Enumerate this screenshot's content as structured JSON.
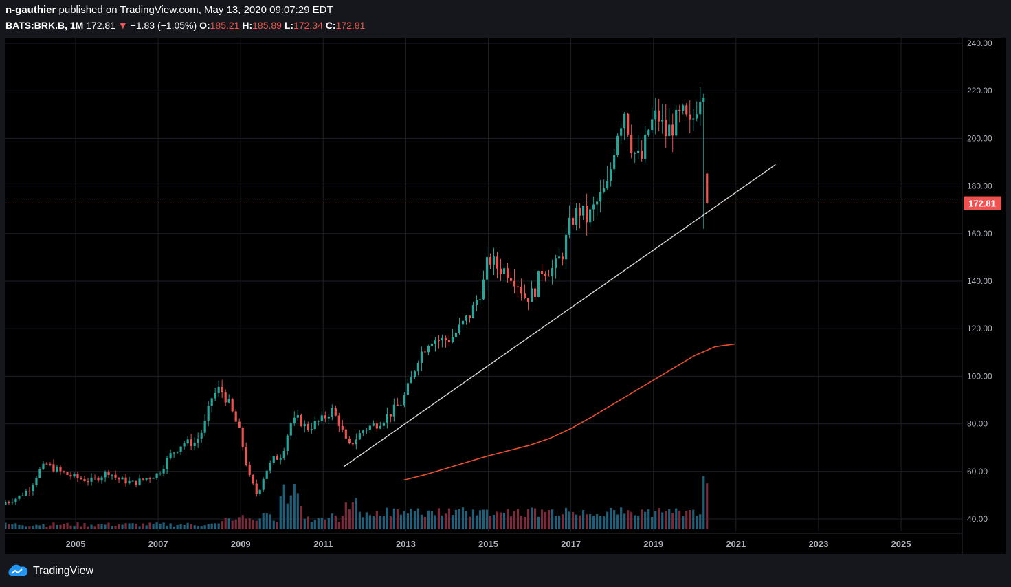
{
  "header": {
    "author": "n-gauthier",
    "published_text": "published on TradingView.com, May 13, 2020 09:07:29 EDT",
    "symbol": "BATS:BRK.B, 1M",
    "last": "172.81",
    "arrow": "▼",
    "change": "−1.83 (−1.05%)",
    "o_label": "O:",
    "o_value": "185.21",
    "h_label": "H:",
    "h_value": "185.89",
    "l_label": "L:",
    "l_value": "172.34",
    "c_label": "C:",
    "c_value": "172.81"
  },
  "footer": {
    "brand": "TradingView"
  },
  "colors": {
    "up": "#26a69a",
    "down": "#ef5350",
    "ma": "#e8502f",
    "trendline": "#d8d8d8",
    "price_line": "#ef5350",
    "volume_up": "#1f5f7a",
    "volume_down": "#7a2a3a"
  },
  "chart_data": {
    "type": "candlestick",
    "interval": "1M",
    "symbol": "BATS:BRK.B",
    "y_range": [
      35,
      240
    ],
    "x_range": [
      2003.3,
      2026.5
    ],
    "y_ticks": [
      "240.00",
      "220.00",
      "200.00",
      "180.00",
      "160.00",
      "140.00",
      "120.00",
      "100.00",
      "80.00",
      "60.00",
      "40.00"
    ],
    "x_ticks": [
      "2005",
      "2007",
      "2009",
      "2011",
      "2013",
      "2015",
      "2017",
      "2019",
      "2021",
      "2023",
      "2025"
    ],
    "last_price_label": "172.81",
    "last_price": 172.81,
    "price_anchors": [
      [
        2003.3,
        47
      ],
      [
        2003.6,
        49
      ],
      [
        2003.9,
        53
      ],
      [
        2004.1,
        60
      ],
      [
        2004.3,
        63
      ],
      [
        2004.6,
        60
      ],
      [
        2004.9,
        58
      ],
      [
        2005.1,
        57
      ],
      [
        2005.4,
        56
      ],
      [
        2005.8,
        60
      ],
      [
        2006.0,
        57
      ],
      [
        2006.4,
        55
      ],
      [
        2006.7,
        57
      ],
      [
        2007.0,
        59
      ],
      [
        2007.3,
        67
      ],
      [
        2007.6,
        72
      ],
      [
        2007.9,
        72
      ],
      [
        2008.1,
        78
      ],
      [
        2008.3,
        91
      ],
      [
        2008.5,
        95
      ],
      [
        2008.7,
        89
      ],
      [
        2008.9,
        80
      ],
      [
        2009.0,
        75
      ],
      [
        2009.2,
        58
      ],
      [
        2009.4,
        50
      ],
      [
        2009.6,
        60
      ],
      [
        2009.8,
        65
      ],
      [
        2010.0,
        67
      ],
      [
        2010.2,
        80
      ],
      [
        2010.4,
        82
      ],
      [
        2010.6,
        78
      ],
      [
        2010.8,
        80
      ],
      [
        2011.0,
        82
      ],
      [
        2011.2,
        86
      ],
      [
        2011.4,
        80
      ],
      [
        2011.6,
        70
      ],
      [
        2011.8,
        74
      ],
      [
        2012.0,
        78
      ],
      [
        2012.3,
        80
      ],
      [
        2012.6,
        84
      ],
      [
        2012.9,
        89
      ],
      [
        2013.1,
        97
      ],
      [
        2013.3,
        108
      ],
      [
        2013.6,
        116
      ],
      [
        2013.9,
        115
      ],
      [
        2014.1,
        116
      ],
      [
        2014.3,
        120
      ],
      [
        2014.6,
        127
      ],
      [
        2014.9,
        140
      ],
      [
        2015.0,
        150
      ],
      [
        2015.2,
        146
      ],
      [
        2015.5,
        144
      ],
      [
        2015.7,
        140
      ],
      [
        2015.9,
        133
      ],
      [
        2016.1,
        135
      ],
      [
        2016.3,
        145
      ],
      [
        2016.6,
        145
      ],
      [
        2016.8,
        152
      ],
      [
        2017.0,
        165
      ],
      [
        2017.2,
        170
      ],
      [
        2017.4,
        166
      ],
      [
        2017.6,
        172
      ],
      [
        2017.9,
        180
      ],
      [
        2018.1,
        202
      ],
      [
        2018.3,
        212
      ],
      [
        2018.5,
        195
      ],
      [
        2018.7,
        190
      ],
      [
        2018.9,
        205
      ],
      [
        2019.1,
        210
      ],
      [
        2019.3,
        202
      ],
      [
        2019.5,
        206
      ],
      [
        2019.7,
        210
      ],
      [
        2019.9,
        204
      ],
      [
        2020.1,
        218
      ],
      [
        2020.3,
        226
      ],
      [
        2020.4,
        210
      ],
      [
        2020.55,
        185
      ],
      [
        2020.65,
        178
      ],
      [
        2020.75,
        175
      ],
      [
        2020.82,
        185
      ],
      [
        2020.92,
        172.81
      ]
    ],
    "trendline": {
      "start": [
        2011.5,
        62
      ],
      "end": [
        2021.96,
        189
      ]
    },
    "moving_average": [
      [
        2012.95,
        57.2
      ],
      [
        2013.5,
        60.5
      ],
      [
        2014.0,
        64
      ],
      [
        2014.5,
        67.5
      ],
      [
        2015.0,
        71
      ],
      [
        2015.5,
        74
      ],
      [
        2016.0,
        77
      ],
      [
        2016.5,
        81
      ],
      [
        2017.0,
        86.5
      ],
      [
        2017.5,
        93
      ],
      [
        2018.0,
        100
      ],
      [
        2018.5,
        107
      ],
      [
        2019.0,
        114
      ],
      [
        2019.5,
        121
      ],
      [
        2020.0,
        128
      ],
      [
        2020.5,
        133
      ],
      [
        2020.97,
        134.5
      ]
    ]
  }
}
